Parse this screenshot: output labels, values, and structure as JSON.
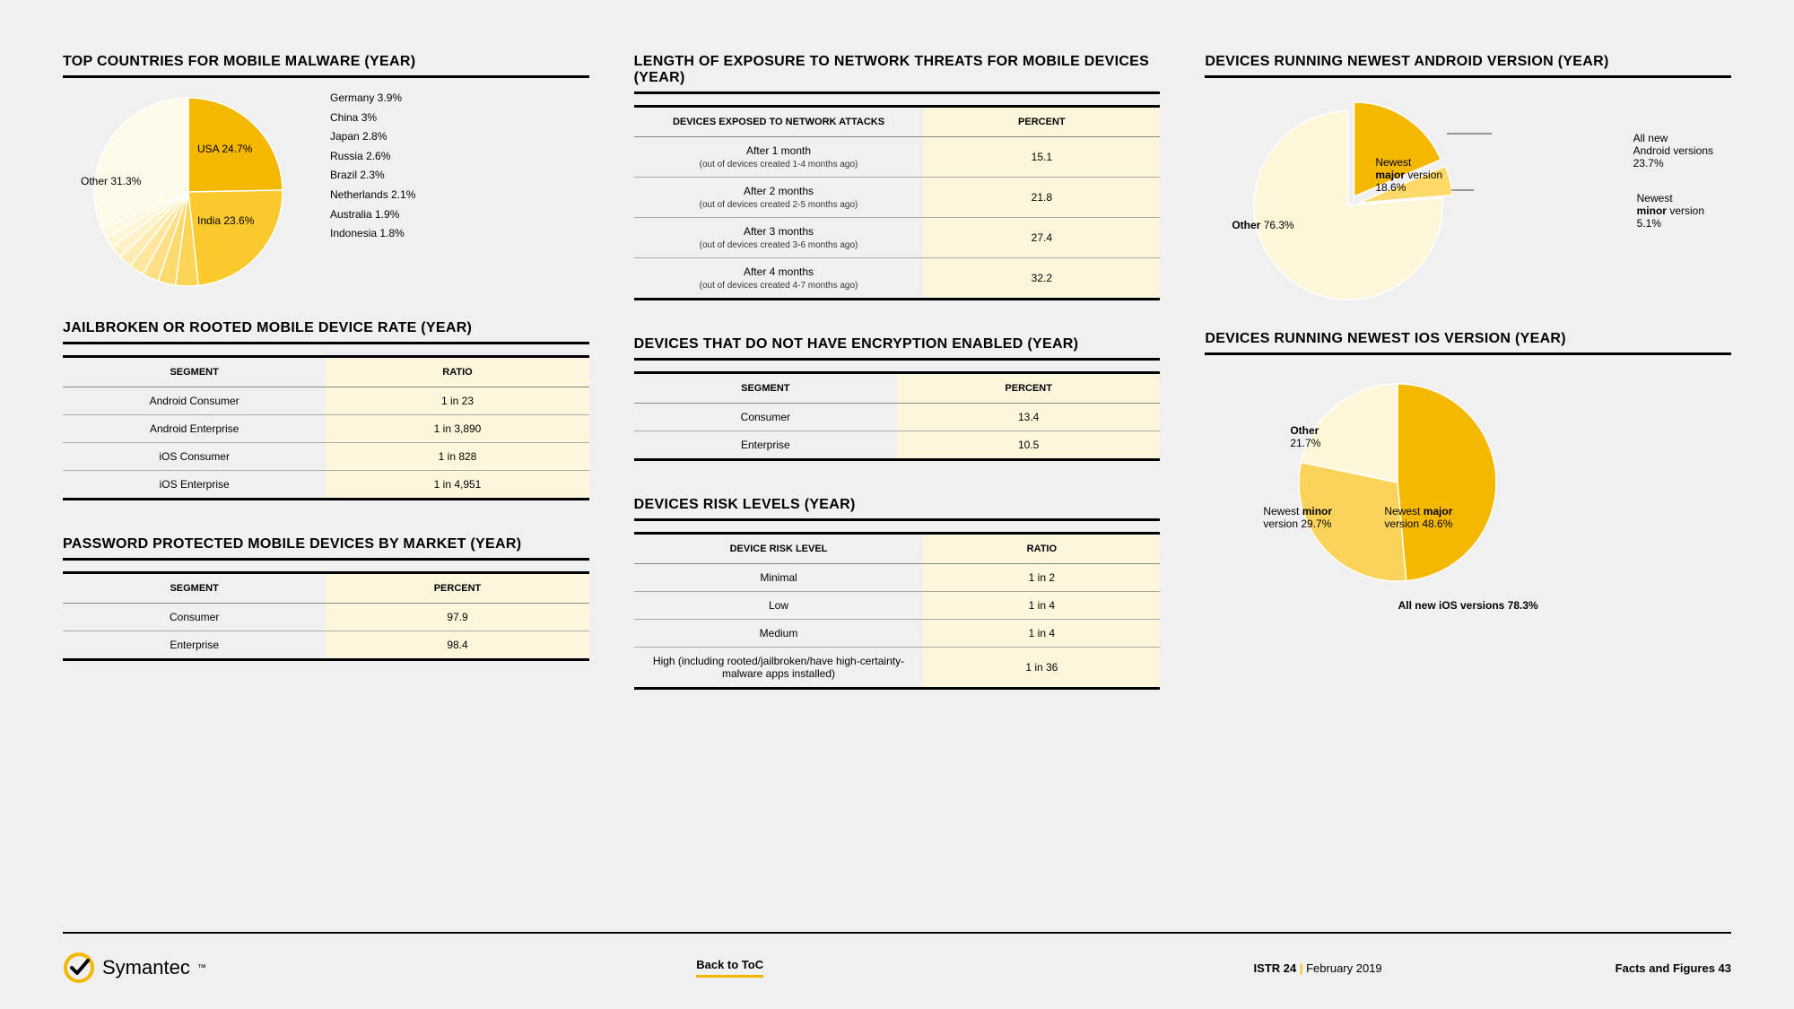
{
  "colors": {
    "bg": "#f0f0f0",
    "accent": "#f5b800",
    "hl": "#fdf6dc",
    "black": "#000000"
  },
  "col1": {
    "pie1": {
      "title": "TOP COUNTRIES FOR MOBILE MALWARE (YEAR)",
      "slices": [
        {
          "label": "USA 24.7%",
          "value": 24.7,
          "color": "#f5b800"
        },
        {
          "label": "India 23.6%",
          "value": 23.6,
          "color": "#f9c92e"
        },
        {
          "label": "Germany 3.9%",
          "value": 3.9,
          "color": "#fcd456"
        },
        {
          "label": "China 3%",
          "value": 3.0,
          "color": "#fdda6e"
        },
        {
          "label": "Japan 2.8%",
          "value": 2.8,
          "color": "#fde085"
        },
        {
          "label": "Russia 2.6%",
          "value": 2.6,
          "color": "#fee69c"
        },
        {
          "label": "Brazil 2.3%",
          "value": 2.3,
          "color": "#feecb3"
        },
        {
          "label": "Netherlands 2.1%",
          "value": 2.1,
          "color": "#fef1c6"
        },
        {
          "label": "Australia 1.9%",
          "value": 1.9,
          "color": "#fef5d5"
        },
        {
          "label": "Indonesia 1.8%",
          "value": 1.8,
          "color": "#fef8e1"
        },
        {
          "label": "Other 31.3%",
          "value": 31.3,
          "color": "#fefae9"
        }
      ]
    },
    "table1": {
      "title": "JAILBROKEN OR ROOTED MOBILE DEVICE RATE (YEAR)",
      "headers": [
        "SEGMENT",
        "RATIO"
      ],
      "rows": [
        [
          "Android Consumer",
          "1 in 23"
        ],
        [
          "Android Enterprise",
          "1 in 3,890"
        ],
        [
          "iOS Consumer",
          "1 in 828"
        ],
        [
          "iOS Enterprise",
          "1 in 4,951"
        ]
      ]
    },
    "table2": {
      "title": "PASSWORD PROTECTED MOBILE DEVICES BY MARKET (YEAR)",
      "headers": [
        "SEGMENT",
        "PERCENT"
      ],
      "rows": [
        [
          "Consumer",
          "97.9"
        ],
        [
          "Enterprise",
          "98.4"
        ]
      ]
    }
  },
  "col2": {
    "table1": {
      "title": "LENGTH OF EXPOSURE TO NETWORK THREATS FOR MOBILE DEVICES (YEAR)",
      "headers": [
        "DEVICES EXPOSED TO NETWORK ATTACKS",
        "PERCENT"
      ],
      "rows": [
        {
          "main": "After 1 month",
          "sub": "(out of devices created 1-4 months ago)",
          "val": "15.1"
        },
        {
          "main": "After 2 months",
          "sub": "(out of devices created 2-5 months ago)",
          "val": "21.8"
        },
        {
          "main": "After 3 months",
          "sub": "(out of devices created 3-6 months ago)",
          "val": "27.4"
        },
        {
          "main": "After 4 months",
          "sub": "(out of devices created 4-7 months ago)",
          "val": "32.2"
        }
      ]
    },
    "table2": {
      "title": "DEVICES THAT DO NOT HAVE ENCRYPTION ENABLED (YEAR)",
      "headers": [
        "SEGMENT",
        "PERCENT"
      ],
      "rows": [
        [
          "Consumer",
          "13.4"
        ],
        [
          "Enterprise",
          "10.5"
        ]
      ]
    },
    "table3": {
      "title": "DEVICES RISK LEVELS (YEAR)",
      "headers": [
        "DEVICE RISK LEVEL",
        "RATIO"
      ],
      "rows": [
        {
          "main": "Minimal",
          "val": "1 in 2"
        },
        {
          "main": "Low",
          "val": "1 in 4"
        },
        {
          "main": "Medium",
          "val": "1 in 4"
        },
        {
          "main": "High (including rooted/jailbroken/have high-certainty-malware apps installed)",
          "val": "1 in 36"
        }
      ]
    }
  },
  "col3": {
    "pie1": {
      "title": "DEVICES RUNNING NEWEST ANDROID VERSION (YEAR)",
      "slices": [
        {
          "label": "Newest major version 18.6%",
          "value": 18.6,
          "color": "#f5b800",
          "lh": "Newest<br><b>major</b> version<br>18.6%"
        },
        {
          "label": "Newest minor version 5.1%",
          "value": 5.1,
          "color": "#fcd968",
          "lh": "Newest<br><b>minor</b> version<br>5.1%"
        },
        {
          "label": "Other 76.3%",
          "value": 76.3,
          "color": "#fef6d8",
          "lh": "<b>Other</b> 76.3%"
        }
      ],
      "topnote": "All new<br>Android versions<br>23.7%"
    },
    "pie2": {
      "title": "DEVICES RUNNING NEWEST IOS VERSION (YEAR)",
      "slices": [
        {
          "label": "Newest major version 48.6%",
          "value": 48.6,
          "color": "#f5b800",
          "lh": "Newest <b>major</b><br>version 48.6%"
        },
        {
          "label": "Newest minor version 29.7%",
          "value": 29.7,
          "color": "#fbd35a",
          "lh": "Newest <b>minor</b><br>version 29.7%"
        },
        {
          "label": "Other 21.7%",
          "value": 21.7,
          "color": "#fef6d8",
          "lh": "<b>Other</b><br>21.7%"
        }
      ],
      "botnote": "All new iOS versions 78.3%"
    }
  },
  "footer": {
    "brand": "Symantec",
    "back": "Back to ToC",
    "istr": "ISTR 24",
    "date": "February 2019",
    "right": "Facts and Figures  43"
  }
}
